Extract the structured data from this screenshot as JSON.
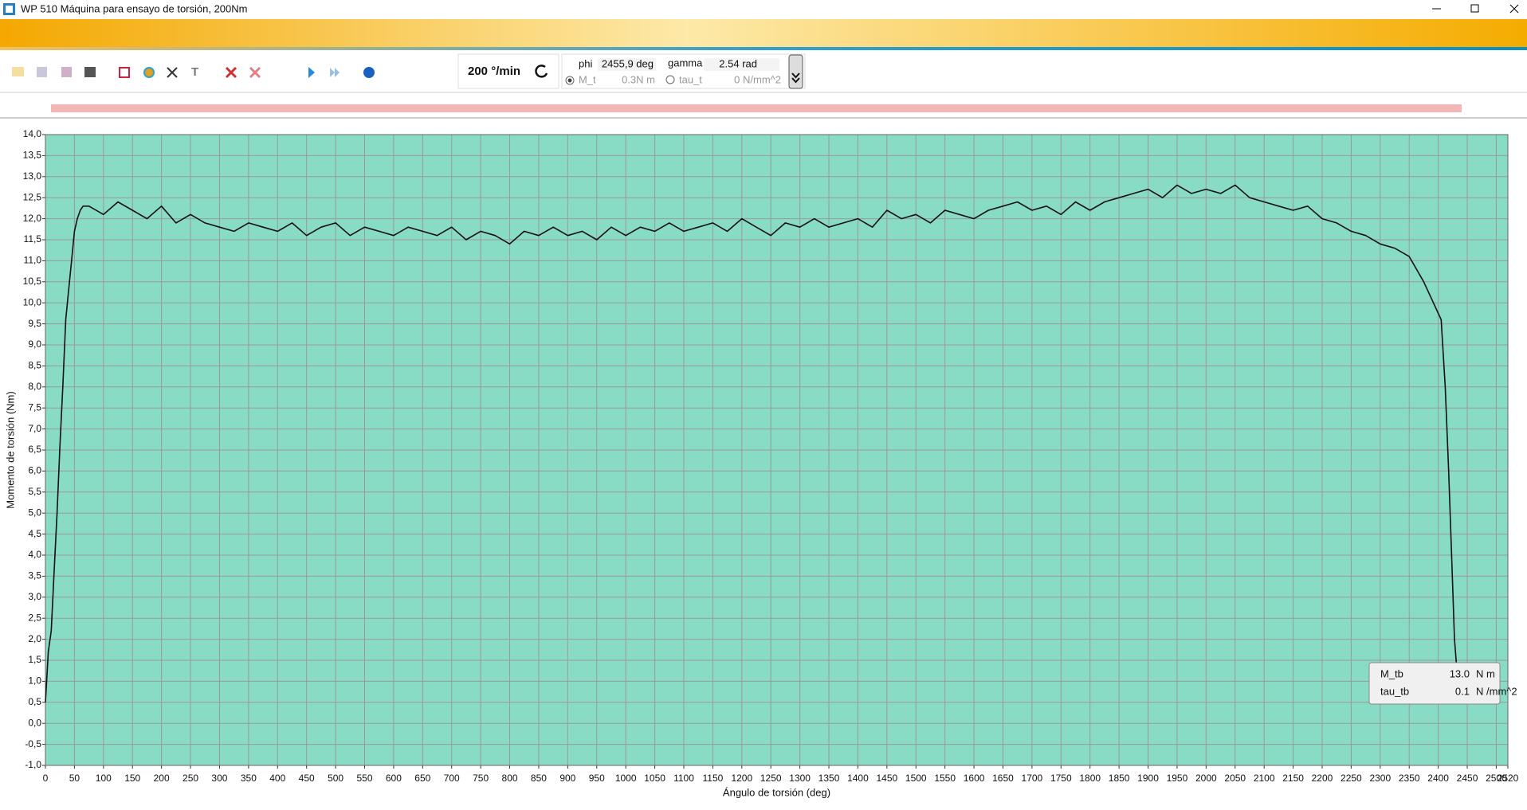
{
  "window": {
    "title": "WP 510 Máquina para ensayo de torsión, 200Nm"
  },
  "toolbar": {
    "speed": "200 °/min",
    "phi_label": "phi",
    "phi_value": "2455,9 deg",
    "gamma_label": "gamma",
    "gamma_value": "2.54 rad",
    "mt_label": "M_t",
    "mt_value": "0.3N m",
    "tau_label": "tau_t",
    "tau_value": "0 N/mm^2"
  },
  "chart_data": {
    "type": "line",
    "color": "#111111",
    "background": "#88dbc5",
    "grid": true,
    "xlabel": "Ángulo de torsión (deg)",
    "ylabel": "Momento de torsión (Nm)",
    "xlim": [
      0,
      2520
    ],
    "ylim": [
      -1.0,
      14.0
    ],
    "xticks": [
      0,
      50,
      100,
      150,
      200,
      250,
      300,
      350,
      400,
      450,
      500,
      550,
      600,
      650,
      700,
      750,
      800,
      850,
      900,
      950,
      1000,
      1050,
      1100,
      1150,
      1200,
      1250,
      1300,
      1350,
      1400,
      1450,
      1500,
      1550,
      1600,
      1650,
      1700,
      1750,
      1800,
      1850,
      1900,
      1950,
      2000,
      2050,
      2100,
      2150,
      2200,
      2250,
      2300,
      2350,
      2400,
      2450,
      2500,
      2520
    ],
    "yticks": [
      {
        "value": -1.0,
        "label": "-1,0"
      },
      {
        "value": -0.5,
        "label": "-0,5"
      },
      {
        "value": 0,
        "label": "0,0"
      },
      {
        "value": 0.5,
        "label": "0,5"
      },
      {
        "value": 1.0,
        "label": "1,0"
      },
      {
        "value": 1.5,
        "label": "1,5"
      },
      {
        "value": 2.0,
        "label": "2,0"
      },
      {
        "value": 2.5,
        "label": "2,5"
      },
      {
        "value": 3.0,
        "label": "3,0"
      },
      {
        "value": 3.5,
        "label": "3,5"
      },
      {
        "value": 4.0,
        "label": "4,0"
      },
      {
        "value": 4.5,
        "label": "4,5"
      },
      {
        "value": 5.0,
        "label": "5,0"
      },
      {
        "value": 5.5,
        "label": "5,5"
      },
      {
        "value": 6.0,
        "label": "6,0"
      },
      {
        "value": 6.5,
        "label": "6,5"
      },
      {
        "value": 7.0,
        "label": "7,0"
      },
      {
        "value": 7.5,
        "label": "7,5"
      },
      {
        "value": 8.0,
        "label": "8,0"
      },
      {
        "value": 8.5,
        "label": "8,5"
      },
      {
        "value": 9.0,
        "label": "9,0"
      },
      {
        "value": 9.5,
        "label": "9,5"
      },
      {
        "value": 10.0,
        "label": "10,0"
      },
      {
        "value": 10.5,
        "label": "10,5"
      },
      {
        "value": 11.0,
        "label": "11,0"
      },
      {
        "value": 11.5,
        "label": "11,5"
      },
      {
        "value": 12.0,
        "label": "12,0"
      },
      {
        "value": 12.5,
        "label": "12,5"
      },
      {
        "value": 13.0,
        "label": "13,0"
      },
      {
        "value": 13.5,
        "label": "13,5"
      },
      {
        "value": 14.0,
        "label": "14,0"
      }
    ],
    "x": [
      0,
      5,
      10,
      15,
      20,
      25,
      30,
      35,
      40,
      45,
      50,
      55,
      60,
      65,
      75,
      100,
      125,
      150,
      175,
      200,
      225,
      250,
      275,
      300,
      325,
      350,
      375,
      400,
      425,
      450,
      475,
      500,
      525,
      550,
      575,
      600,
      625,
      650,
      675,
      700,
      725,
      750,
      775,
      800,
      825,
      850,
      875,
      900,
      925,
      950,
      975,
      1000,
      1025,
      1050,
      1075,
      1100,
      1125,
      1150,
      1175,
      1200,
      1225,
      1250,
      1275,
      1300,
      1325,
      1350,
      1375,
      1400,
      1425,
      1450,
      1475,
      1500,
      1525,
      1550,
      1575,
      1600,
      1625,
      1650,
      1675,
      1700,
      1725,
      1750,
      1775,
      1800,
      1825,
      1850,
      1875,
      1900,
      1925,
      1950,
      1975,
      2000,
      2025,
      2050,
      2075,
      2100,
      2125,
      2150,
      2175,
      2200,
      2225,
      2250,
      2275,
      2300,
      2325,
      2350,
      2375,
      2395,
      2405,
      2412,
      2418,
      2423,
      2428,
      2432
    ],
    "values": [
      0.5,
      1.7,
      2.2,
      3.6,
      5.0,
      6.6,
      8.0,
      9.6,
      10.3,
      11.0,
      11.7,
      12.0,
      12.2,
      12.3,
      12.3,
      12.1,
      12.4,
      12.2,
      12.0,
      12.3,
      11.9,
      12.1,
      11.9,
      11.8,
      11.7,
      11.9,
      11.8,
      11.7,
      11.9,
      11.6,
      11.8,
      11.9,
      11.6,
      11.8,
      11.7,
      11.6,
      11.8,
      11.7,
      11.6,
      11.8,
      11.5,
      11.7,
      11.6,
      11.4,
      11.7,
      11.6,
      11.8,
      11.6,
      11.7,
      11.5,
      11.8,
      11.6,
      11.8,
      11.7,
      11.9,
      11.7,
      11.8,
      11.9,
      11.7,
      12.0,
      11.8,
      11.6,
      11.9,
      11.8,
      12.0,
      11.8,
      11.9,
      12.0,
      11.8,
      12.2,
      12.0,
      12.1,
      11.9,
      12.2,
      12.1,
      12.0,
      12.2,
      12.3,
      12.4,
      12.2,
      12.3,
      12.1,
      12.4,
      12.2,
      12.4,
      12.5,
      12.6,
      12.7,
      12.5,
      12.8,
      12.6,
      12.7,
      12.6,
      12.8,
      12.5,
      12.4,
      12.3,
      12.2,
      12.3,
      12.0,
      11.9,
      11.7,
      11.6,
      11.4,
      11.3,
      11.1,
      10.5,
      9.9,
      9.6,
      8.0,
      6.0,
      4.0,
      2.0,
      1.3
    ],
    "info_box": {
      "rows": [
        [
          "M_tb",
          "13.0",
          "N m"
        ],
        [
          "tau_tb",
          "0.1",
          "N /mm^2"
        ]
      ]
    }
  }
}
